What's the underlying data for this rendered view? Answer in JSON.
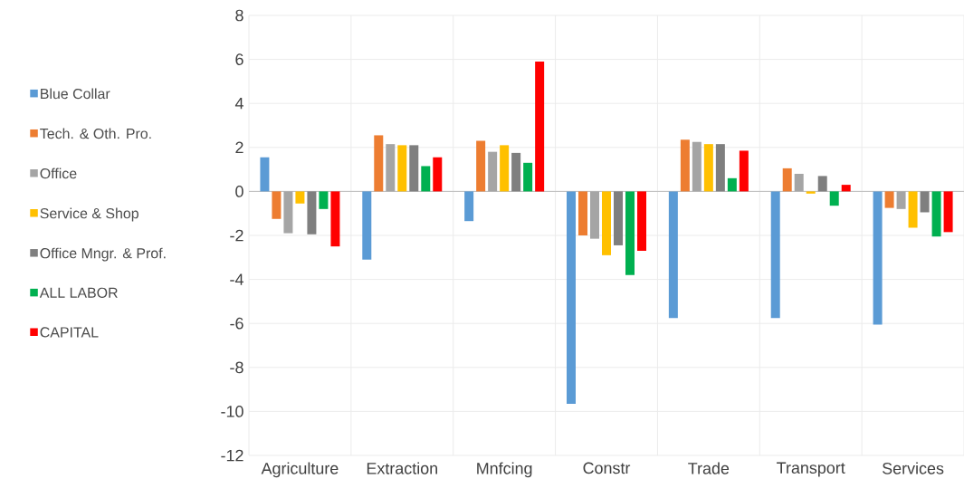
{
  "chart_data": {
    "type": "bar",
    "categories": [
      "Agriculture",
      "Extraction",
      "Mnfcing",
      "Constr",
      "Trade",
      "Transport",
      "Services"
    ],
    "series": [
      {
        "name": "Blue Collar",
        "color": "#5b9bd5",
        "values": [
          1.55,
          -3.1,
          -1.35,
          -9.65,
          -5.75,
          -5.75,
          -6.05
        ]
      },
      {
        "name": "Tech. & Oth. Pro.",
        "color": "#ed7d31",
        "values": [
          -1.25,
          2.55,
          2.3,
          -2.0,
          2.35,
          1.05,
          -0.75
        ]
      },
      {
        "name": "Office",
        "color": "#a5a5a5",
        "values": [
          -1.9,
          2.15,
          1.8,
          -2.15,
          2.25,
          0.8,
          -0.8
        ]
      },
      {
        "name": "Service & Shop",
        "color": "#ffc000",
        "values": [
          -0.55,
          2.1,
          2.1,
          -2.9,
          2.15,
          -0.1,
          -1.65
        ]
      },
      {
        "name": "Office Mngr. & Prof.",
        "color": "#7f7f7f",
        "values": [
          -1.95,
          2.1,
          1.75,
          -2.45,
          2.15,
          0.7,
          -0.95
        ]
      },
      {
        "name": "ALL LABOR",
        "color": "#00b050",
        "values": [
          -0.8,
          1.15,
          1.3,
          -3.8,
          0.6,
          -0.65,
          -2.05
        ]
      },
      {
        "name": "CAPITAL",
        "color": "#ff0000",
        "values": [
          -2.5,
          1.55,
          5.9,
          -2.7,
          1.85,
          0.3,
          -1.85
        ]
      }
    ],
    "ylim": [
      -12,
      8
    ],
    "yticks": [
      -12,
      -10,
      -8,
      -6,
      -4,
      -2,
      0,
      2,
      4,
      6,
      8
    ],
    "grid": true,
    "legend": "left"
  }
}
